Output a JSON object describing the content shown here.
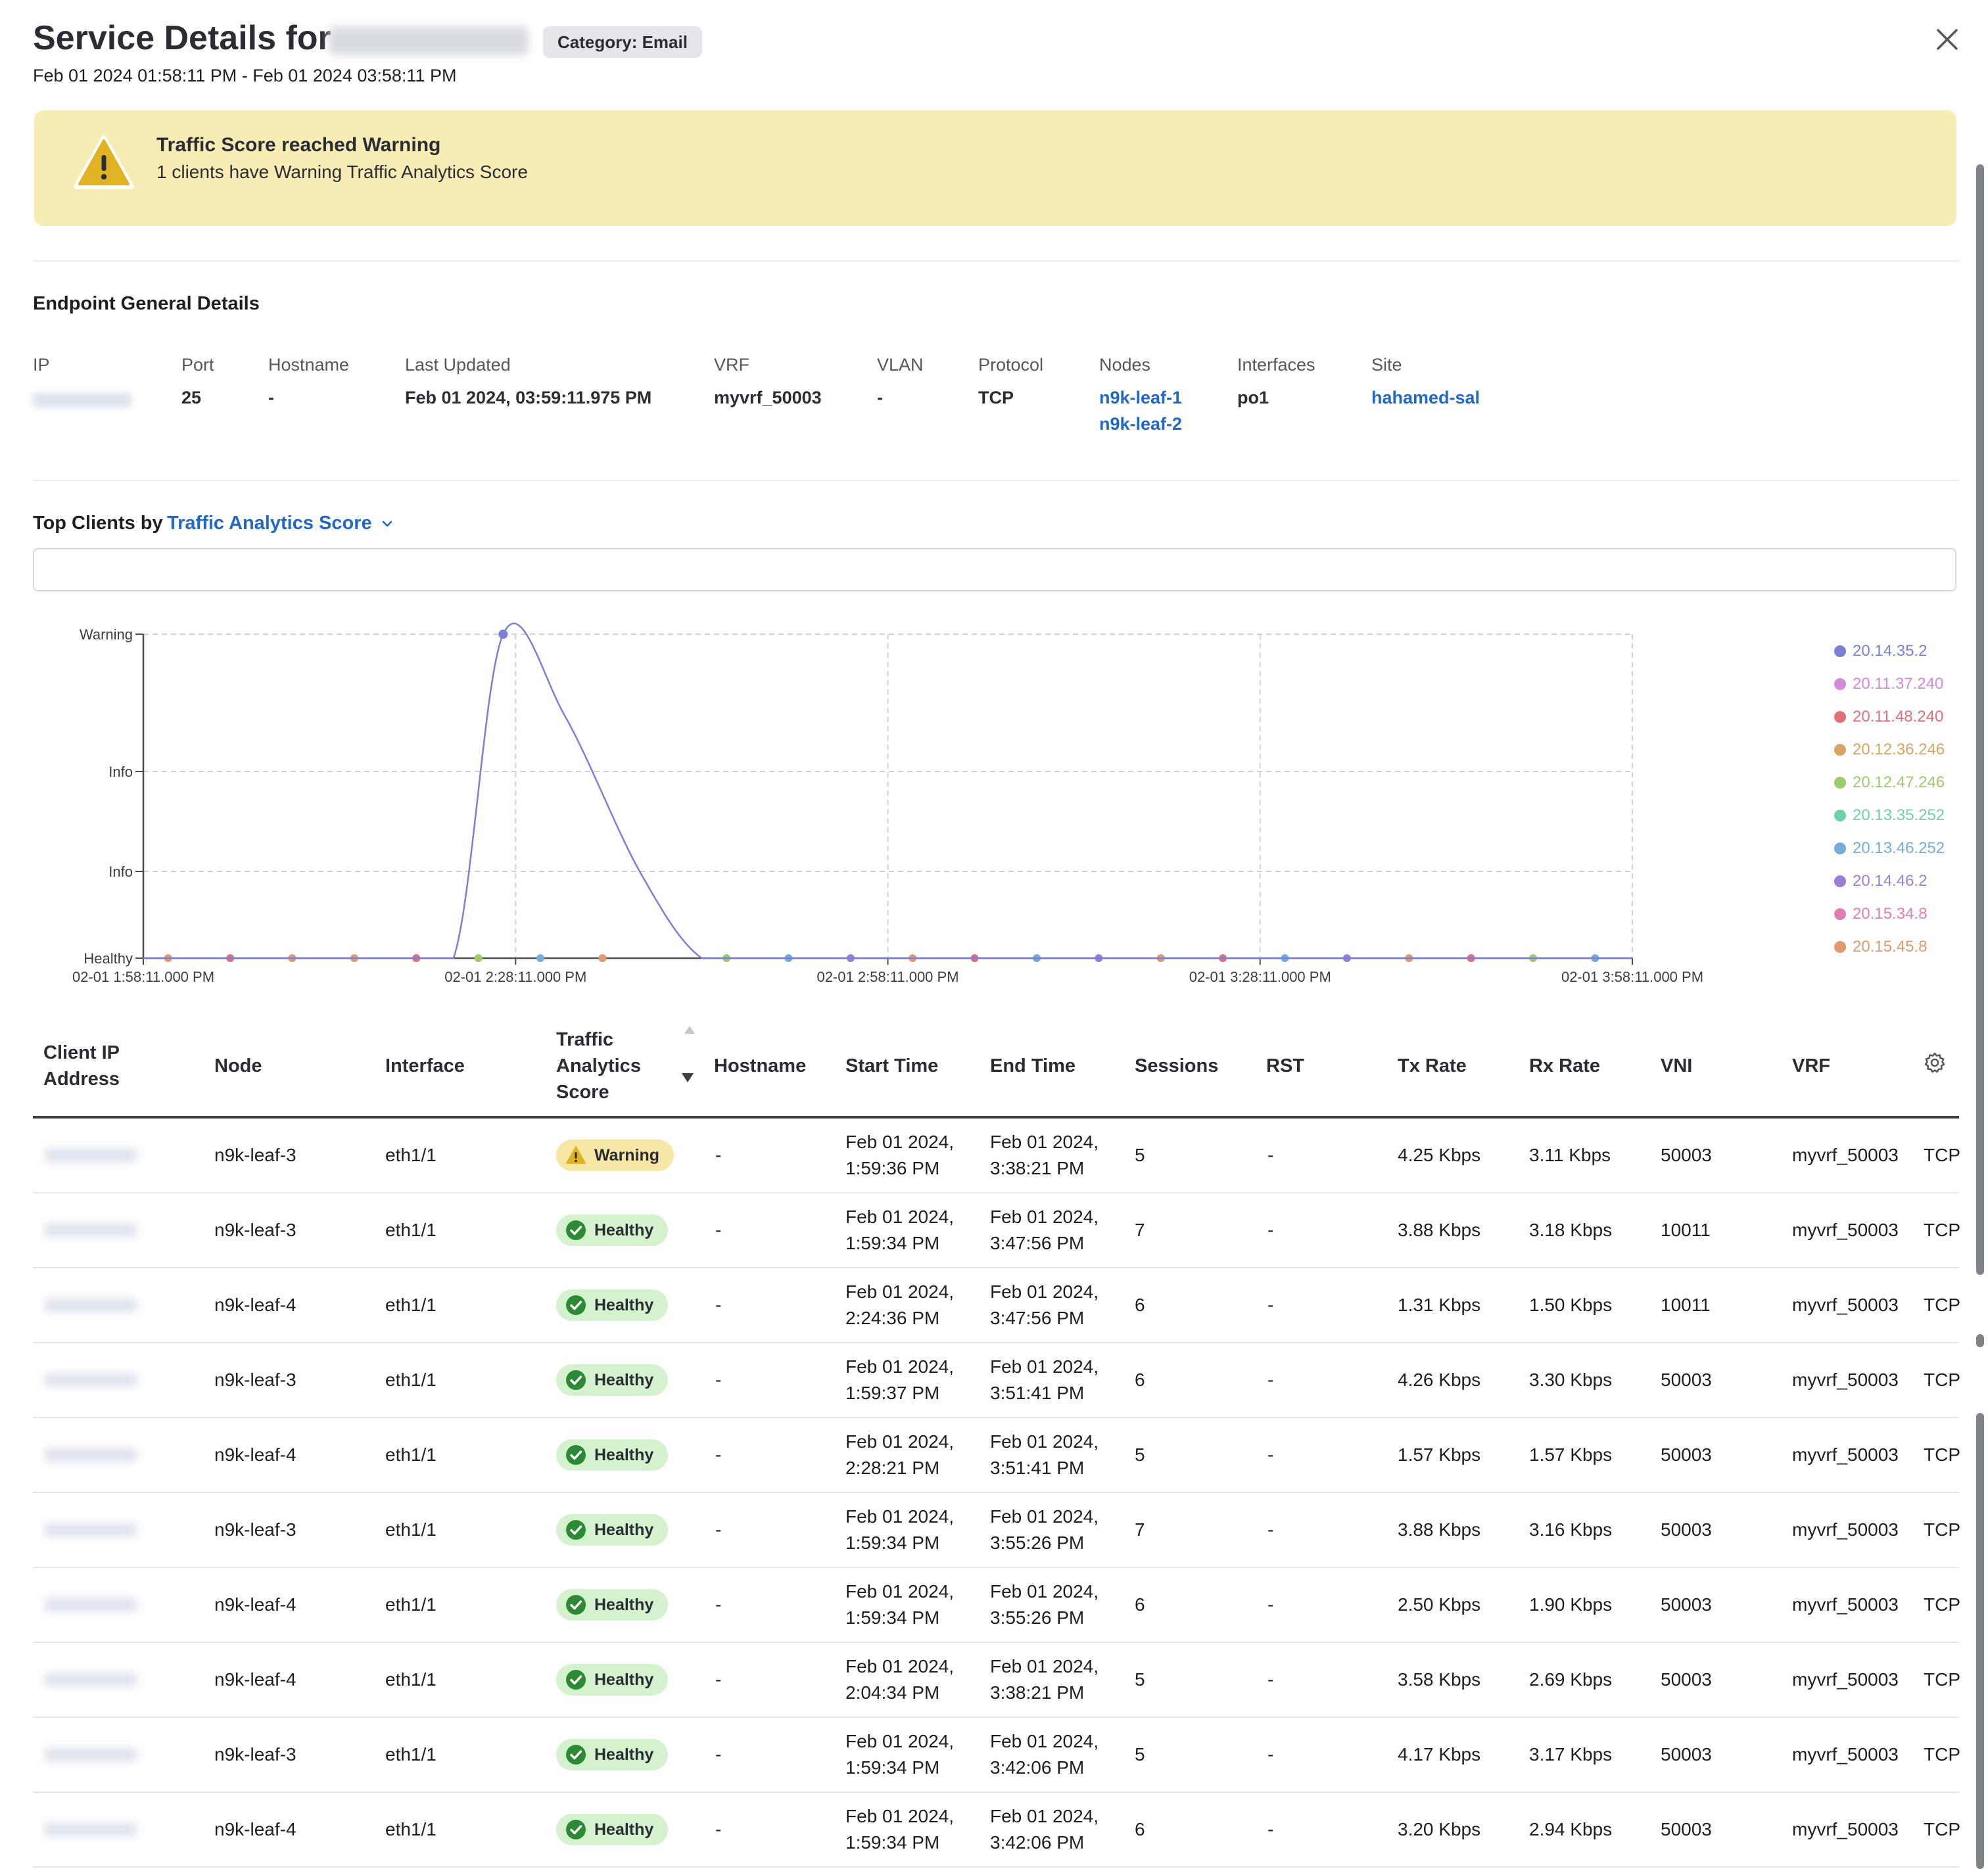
{
  "header": {
    "title": "Service Details for",
    "category_badge": "Category: Email",
    "time_range": "Feb 01 2024 01:58:11 PM - Feb 01 2024 03:58:11 PM"
  },
  "banner": {
    "title": "Traffic Score reached Warning",
    "message": "1 clients have Warning Traffic Analytics Score"
  },
  "endpoint": {
    "section_title": "Endpoint General Details",
    "labels": {
      "ip": "IP",
      "port": "Port",
      "hostname": "Hostname",
      "last_updated": "Last Updated",
      "vrf": "VRF",
      "vlan": "VLAN",
      "protocol": "Protocol",
      "nodes": "Nodes",
      "interfaces": "Interfaces",
      "site": "Site"
    },
    "values": {
      "port": "25",
      "hostname": "-",
      "last_updated": "Feb 01 2024, 03:59:11.975 PM",
      "vrf": "myvrf_50003",
      "vlan": "-",
      "protocol": "TCP",
      "nodes": [
        "n9k-leaf-1",
        "n9k-leaf-2"
      ],
      "interfaces": "po1",
      "site": "hahamed-sal"
    }
  },
  "top_clients": {
    "label": "Top Clients by",
    "dropdown": "Traffic Analytics Score"
  },
  "chart_data": {
    "type": "line",
    "y_categories": [
      "Healthy",
      "Info",
      "Info",
      "Warning"
    ],
    "x_ticks": [
      "02-01 1:58:11.000 PM",
      "02-01 2:28:11.000 PM",
      "02-01 2:58:11.000 PM",
      "02-01 3:28:11.000 PM",
      "02-01 3:58:11.000 PM"
    ],
    "grid": true,
    "legend_position": "right",
    "series": [
      {
        "name": "20.14.35.2",
        "color": "#7b7fd6",
        "points": [
          [
            0,
            0
          ],
          [
            20,
            0
          ],
          [
            25,
            0
          ],
          [
            29,
            3
          ],
          [
            34,
            2.4
          ],
          [
            40,
            1
          ],
          [
            45,
            0
          ],
          [
            50,
            0
          ],
          [
            60,
            0
          ],
          [
            70,
            0
          ],
          [
            80,
            0
          ],
          [
            90,
            0
          ],
          [
            100,
            0
          ],
          [
            110,
            0
          ],
          [
            120,
            0
          ]
        ]
      },
      {
        "name": "20.11.37.240",
        "color": "#d58ad9",
        "points": []
      },
      {
        "name": "20.11.48.240",
        "color": "#e0707c",
        "points": []
      },
      {
        "name": "20.12.36.246",
        "color": "#d9a464",
        "points": []
      },
      {
        "name": "20.12.47.246",
        "color": "#9ccc6c",
        "points": []
      },
      {
        "name": "20.13.35.252",
        "color": "#6fd1a6",
        "points": []
      },
      {
        "name": "20.13.46.252",
        "color": "#73aed9",
        "points": []
      },
      {
        "name": "20.14.46.2",
        "color": "#9a7fd6",
        "points": []
      },
      {
        "name": "20.15.34.8",
        "color": "#e07fb5",
        "points": []
      },
      {
        "name": "20.15.45.8",
        "color": "#e09a6f",
        "points": []
      }
    ],
    "baseline_markers": [
      {
        "t": 2,
        "color": "#e09a6f"
      },
      {
        "t": 7,
        "color": "#e0707c"
      },
      {
        "t": 12,
        "color": "#e09a6f"
      },
      {
        "t": 17,
        "color": "#e09a6f"
      },
      {
        "t": 22,
        "color": "#e0707c"
      },
      {
        "t": 27,
        "color": "#9ccc6c"
      },
      {
        "t": 32,
        "color": "#73aed9"
      },
      {
        "t": 37,
        "color": "#e09a6f"
      },
      {
        "t": 47,
        "color": "#9ccc6c"
      },
      {
        "t": 52,
        "color": "#73aed9"
      },
      {
        "t": 57,
        "color": "#9a7fd6"
      },
      {
        "t": 62,
        "color": "#e09a6f"
      },
      {
        "t": 67,
        "color": "#e0707c"
      },
      {
        "t": 72,
        "color": "#73aed9"
      },
      {
        "t": 77,
        "color": "#9a7fd6"
      },
      {
        "t": 82,
        "color": "#e09a6f"
      },
      {
        "t": 87,
        "color": "#e0707c"
      },
      {
        "t": 92,
        "color": "#73aed9"
      },
      {
        "t": 97,
        "color": "#9a7fd6"
      },
      {
        "t": 102,
        "color": "#e09a6f"
      },
      {
        "t": 107,
        "color": "#e0707c"
      },
      {
        "t": 112,
        "color": "#9ccc6c"
      },
      {
        "t": 117,
        "color": "#73aed9"
      }
    ]
  },
  "table": {
    "columns": {
      "client_ip": [
        "Client IP",
        "Address"
      ],
      "node": "Node",
      "interface": "Interface",
      "score": [
        "Traffic",
        "Analytics",
        "Score"
      ],
      "hostname": "Hostname",
      "start_time": "Start Time",
      "end_time": "End Time",
      "sessions": "Sessions",
      "rst": "RST",
      "tx_rate": "Tx Rate",
      "rx_rate": "Rx Rate",
      "vni": "VNI",
      "vrf": "VRF"
    },
    "rows": [
      {
        "node": "n9k-leaf-3",
        "interface": "eth1/1",
        "score": "Warning",
        "hostname": "-",
        "start": [
          "Feb 01 2024,",
          "1:59:36 PM"
        ],
        "end": [
          "Feb 01 2024,",
          "3:38:21 PM"
        ],
        "sessions": "5",
        "rst": "-",
        "tx": "4.25 Kbps",
        "rx": "3.11 Kbps",
        "vni": "50003",
        "vrf": "myvrf_50003",
        "proto": "TCP"
      },
      {
        "node": "n9k-leaf-3",
        "interface": "eth1/1",
        "score": "Healthy",
        "hostname": "-",
        "start": [
          "Feb 01 2024,",
          "1:59:34 PM"
        ],
        "end": [
          "Feb 01 2024,",
          "3:47:56 PM"
        ],
        "sessions": "7",
        "rst": "-",
        "tx": "3.88 Kbps",
        "rx": "3.18 Kbps",
        "vni": "10011",
        "vrf": "myvrf_50003",
        "proto": "TCP"
      },
      {
        "node": "n9k-leaf-4",
        "interface": "eth1/1",
        "score": "Healthy",
        "hostname": "-",
        "start": [
          "Feb 01 2024,",
          "2:24:36 PM"
        ],
        "end": [
          "Feb 01 2024,",
          "3:47:56 PM"
        ],
        "sessions": "6",
        "rst": "-",
        "tx": "1.31 Kbps",
        "rx": "1.50 Kbps",
        "vni": "10011",
        "vrf": "myvrf_50003",
        "proto": "TCP"
      },
      {
        "node": "n9k-leaf-3",
        "interface": "eth1/1",
        "score": "Healthy",
        "hostname": "-",
        "start": [
          "Feb 01 2024,",
          "1:59:37 PM"
        ],
        "end": [
          "Feb 01 2024,",
          "3:51:41 PM"
        ],
        "sessions": "6",
        "rst": "-",
        "tx": "4.26 Kbps",
        "rx": "3.30 Kbps",
        "vni": "50003",
        "vrf": "myvrf_50003",
        "proto": "TCP"
      },
      {
        "node": "n9k-leaf-4",
        "interface": "eth1/1",
        "score": "Healthy",
        "hostname": "-",
        "start": [
          "Feb 01 2024,",
          "2:28:21 PM"
        ],
        "end": [
          "Feb 01 2024,",
          "3:51:41 PM"
        ],
        "sessions": "5",
        "rst": "-",
        "tx": "1.57 Kbps",
        "rx": "1.57 Kbps",
        "vni": "50003",
        "vrf": "myvrf_50003",
        "proto": "TCP"
      },
      {
        "node": "n9k-leaf-3",
        "interface": "eth1/1",
        "score": "Healthy",
        "hostname": "-",
        "start": [
          "Feb 01 2024,",
          "1:59:34 PM"
        ],
        "end": [
          "Feb 01 2024,",
          "3:55:26 PM"
        ],
        "sessions": "7",
        "rst": "-",
        "tx": "3.88 Kbps",
        "rx": "3.16 Kbps",
        "vni": "50003",
        "vrf": "myvrf_50003",
        "proto": "TCP"
      },
      {
        "node": "n9k-leaf-4",
        "interface": "eth1/1",
        "score": "Healthy",
        "hostname": "-",
        "start": [
          "Feb 01 2024,",
          "1:59:34 PM"
        ],
        "end": [
          "Feb 01 2024,",
          "3:55:26 PM"
        ],
        "sessions": "6",
        "rst": "-",
        "tx": "2.50 Kbps",
        "rx": "1.90 Kbps",
        "vni": "50003",
        "vrf": "myvrf_50003",
        "proto": "TCP"
      },
      {
        "node": "n9k-leaf-4",
        "interface": "eth1/1",
        "score": "Healthy",
        "hostname": "-",
        "start": [
          "Feb 01 2024,",
          "2:04:34 PM"
        ],
        "end": [
          "Feb 01 2024,",
          "3:38:21 PM"
        ],
        "sessions": "5",
        "rst": "-",
        "tx": "3.58 Kbps",
        "rx": "2.69 Kbps",
        "vni": "50003",
        "vrf": "myvrf_50003",
        "proto": "TCP"
      },
      {
        "node": "n9k-leaf-3",
        "interface": "eth1/1",
        "score": "Healthy",
        "hostname": "-",
        "start": [
          "Feb 01 2024,",
          "1:59:34 PM"
        ],
        "end": [
          "Feb 01 2024,",
          "3:42:06 PM"
        ],
        "sessions": "5",
        "rst": "-",
        "tx": "4.17 Kbps",
        "rx": "3.17 Kbps",
        "vni": "50003",
        "vrf": "myvrf_50003",
        "proto": "TCP"
      },
      {
        "node": "n9k-leaf-4",
        "interface": "eth1/1",
        "score": "Healthy",
        "hostname": "-",
        "start": [
          "Feb 01 2024,",
          "1:59:34 PM"
        ],
        "end": [
          "Feb 01 2024,",
          "3:42:06 PM"
        ],
        "sessions": "6",
        "rst": "-",
        "tx": "3.20 Kbps",
        "rx": "2.94 Kbps",
        "vni": "50003",
        "vrf": "myvrf_50003",
        "proto": "TCP"
      }
    ]
  },
  "icons": {
    "close": "close-icon",
    "warning": "warning-triangle-icon",
    "chevron": "chevron-down-icon",
    "healthy": "check-circle-icon",
    "settings": "gear-icon",
    "sort": "sort-arrows-icon"
  },
  "colors": {
    "link": "#2468c2",
    "banner_bg": "#f6ecb4",
    "warning_yellow": "#e0b324",
    "healthy_bg": "#d5f2cf",
    "healthy_green": "#2c8a35",
    "warning_pill": "#f6e7a6"
  }
}
